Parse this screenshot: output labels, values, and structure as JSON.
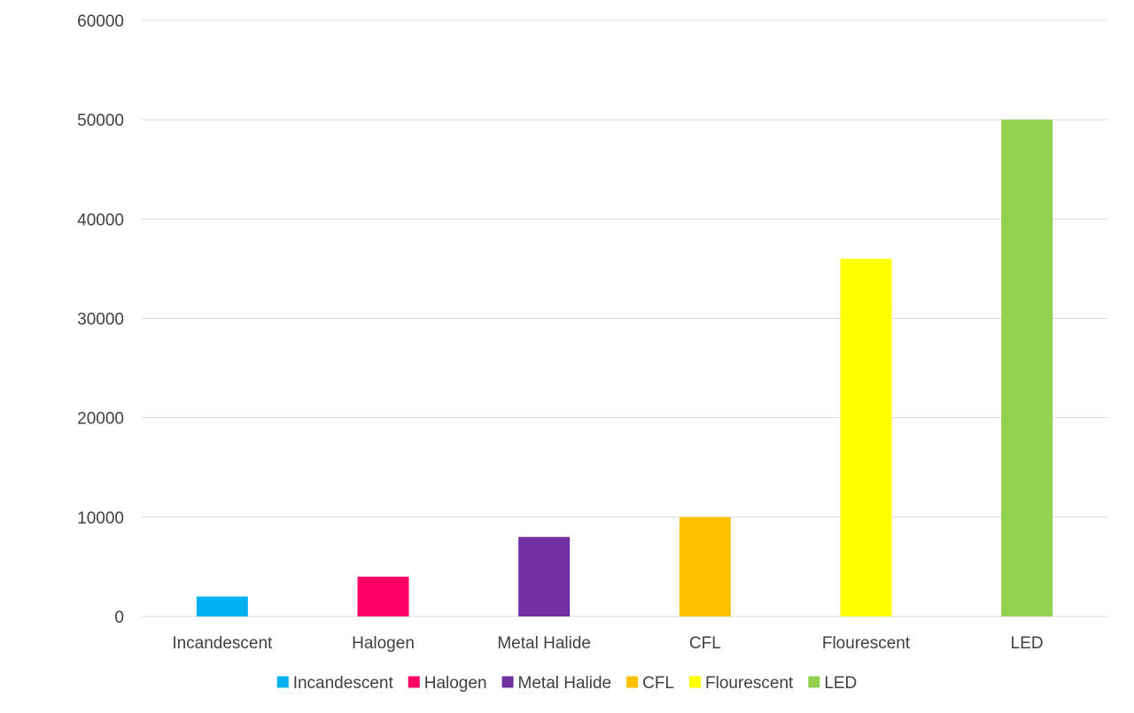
{
  "chart_data": {
    "type": "bar",
    "title": "",
    "xlabel": "",
    "ylabel": "",
    "categories": [
      "Incandescent",
      "Halogen",
      "Metal Halide",
      "CFL",
      "Flourescent",
      "LED"
    ],
    "values": [
      2000,
      4000,
      8000,
      10000,
      36000,
      50000
    ],
    "colors": [
      "#00b0f0",
      "#ff0066",
      "#7030a0",
      "#ffc000",
      "#ffff00",
      "#92d050"
    ],
    "ylim": [
      0,
      60000
    ],
    "yticks": [
      0,
      10000,
      20000,
      30000,
      40000,
      50000,
      60000
    ],
    "grid": true,
    "gridline_color": "#d9d9d9",
    "legend": {
      "position": "bottom",
      "entries": [
        "Incandescent",
        "Halogen",
        "Metal Halide",
        "CFL",
        "Flourescent",
        "LED"
      ]
    }
  }
}
